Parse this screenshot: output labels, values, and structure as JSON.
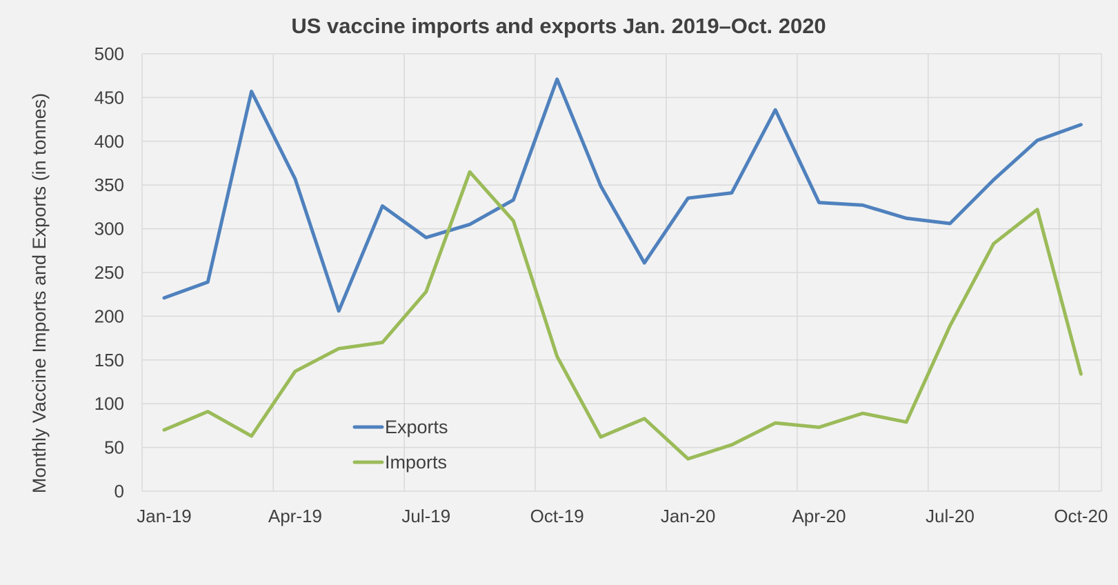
{
  "chart_data": {
    "type": "line",
    "title": "US vaccine imports and exports Jan. 2019–Oct. 2020",
    "xlabel": "",
    "ylabel": "Monthly Vaccine Imports and Exports (in tonnes)",
    "ylim": [
      0,
      500
    ],
    "yticks": [
      "0",
      "50",
      "100",
      "150",
      "200",
      "250",
      "300",
      "350",
      "400",
      "450",
      "500"
    ],
    "x": [
      "Jan-19",
      "Feb-19",
      "Mar-19",
      "Apr-19",
      "May-19",
      "Jun-19",
      "Jul-19",
      "Aug-19",
      "Sep-19",
      "Oct-19",
      "Nov-19",
      "Dec-19",
      "Jan-20",
      "Feb-20",
      "Mar-20",
      "Apr-20",
      "May-20",
      "Jun-20",
      "Jul-20",
      "Aug-20",
      "Sep-20",
      "Oct-20"
    ],
    "xtick_labels": [
      "Jan-19",
      "Apr-19",
      "Jul-19",
      "Oct-19",
      "Jan-20",
      "Apr-20",
      "Jul-20",
      "Oct-20"
    ],
    "grid": true,
    "legend_position": "bottom-left inside plot",
    "series": [
      {
        "name": "Exports",
        "color": "#4f81bd",
        "values": [
          221,
          239,
          457,
          357,
          206,
          326,
          290,
          305,
          333,
          471,
          349,
          261,
          335,
          341,
          436,
          330,
          327,
          312,
          306,
          356,
          401,
          419
        ]
      },
      {
        "name": "Imports",
        "color": "#9bbb59",
        "values": [
          70,
          91,
          63,
          137,
          163,
          170,
          228,
          365,
          309,
          154,
          62,
          83,
          37,
          53,
          78,
          73,
          89,
          79,
          189,
          283,
          322,
          134
        ]
      }
    ]
  }
}
